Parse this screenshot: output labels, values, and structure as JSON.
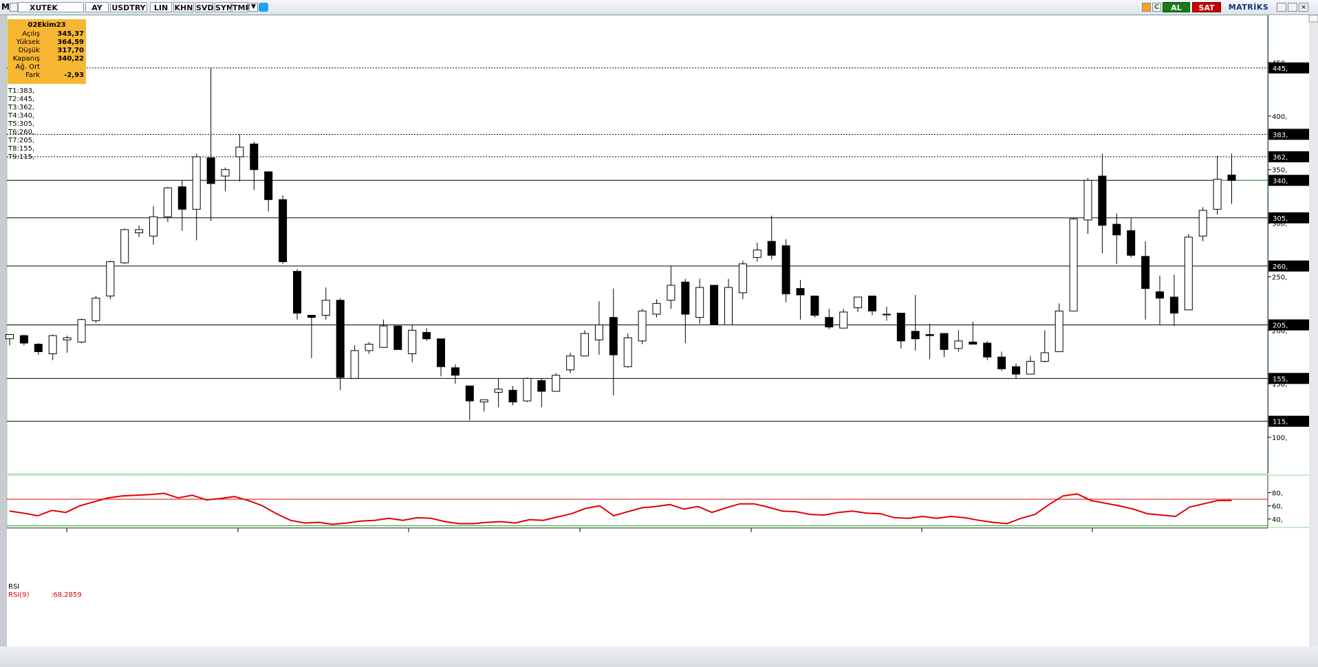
{
  "toolbar": {
    "logo": "M",
    "symbol": "XUTEK",
    "period": "AY",
    "currency": "USDTRY",
    "buttons": [
      "LIN",
      "KHN",
      "SVD",
      "SYM",
      "TMP"
    ],
    "buy_label": "AL",
    "sell_label": "SAT",
    "brand": "MATRİKS",
    "colors": {
      "buy": "#1a7a1a",
      "sell": "#c40000"
    }
  },
  "info_box": {
    "date": "02Ekim23",
    "rows": [
      {
        "label": "Açılış",
        "value": "345,37"
      },
      {
        "label": "Yüksek",
        "value": "364,59"
      },
      {
        "label": "Düşük",
        "value": "317,70"
      },
      {
        "label": "Kapanış",
        "value": "340,22"
      },
      {
        "label": "Ağ. Ort",
        "value": ""
      },
      {
        "label": "Fark",
        "value": "-2,93"
      }
    ],
    "background": "#f7b733"
  },
  "trendline_labels": [
    "T1:383,",
    "T2:445,",
    "T3:362,",
    "T4:340,",
    "T5:305,",
    "T6:260,",
    "T7:205,",
    "T8:155,",
    "T9:115,"
  ],
  "chart_data": [
    {
      "type": "candlestick",
      "title": "",
      "y_axis": {
        "side": "right",
        "min": 70,
        "max": 500,
        "ticks": [
          100,
          150,
          200,
          250,
          300,
          350,
          400,
          450
        ],
        "tick_labels": [
          "100,",
          "150,",
          "200,",
          "250,",
          "300,",
          "350,",
          "400,",
          "450,"
        ]
      },
      "horizontal_lines": [
        {
          "value": 445,
          "label": "445,",
          "style": "dotted"
        },
        {
          "value": 383,
          "label": "383,",
          "style": "dotted"
        },
        {
          "value": 362,
          "label": "362,",
          "style": "dotted"
        },
        {
          "value": 340,
          "label": "340,",
          "style": "solid"
        },
        {
          "value": 305,
          "label": "305,",
          "style": "solid"
        },
        {
          "value": 260,
          "label": "260,",
          "style": "solid"
        },
        {
          "value": 205,
          "label": "205,",
          "style": "solid"
        },
        {
          "value": 155,
          "label": "155,",
          "style": "solid"
        },
        {
          "value": 115,
          "label": "115,",
          "style": "solid"
        }
      ],
      "candles": [
        {
          "o": 192,
          "h": 196,
          "l": 186,
          "c": 196
        },
        {
          "o": 195,
          "h": 196,
          "l": 186,
          "c": 188
        },
        {
          "o": 187,
          "h": 188,
          "l": 177,
          "c": 180
        },
        {
          "o": 178,
          "h": 196,
          "l": 172,
          "c": 195
        },
        {
          "o": 191,
          "h": 195,
          "l": 179,
          "c": 193
        },
        {
          "o": 189,
          "h": 211,
          "l": 188,
          "c": 210
        },
        {
          "o": 209,
          "h": 232,
          "l": 207,
          "c": 230
        },
        {
          "o": 232,
          "h": 265,
          "l": 229,
          "c": 264
        },
        {
          "o": 263,
          "h": 295,
          "l": 262,
          "c": 294
        },
        {
          "o": 291,
          "h": 298,
          "l": 287,
          "c": 294
        },
        {
          "o": 288,
          "h": 316,
          "l": 280,
          "c": 306
        },
        {
          "o": 306,
          "h": 334,
          "l": 301,
          "c": 333
        },
        {
          "o": 334,
          "h": 340,
          "l": 293,
          "c": 313
        },
        {
          "o": 313,
          "h": 365,
          "l": 284,
          "c": 362
        },
        {
          "o": 361,
          "h": 445,
          "l": 302,
          "c": 337
        },
        {
          "o": 344,
          "h": 352,
          "l": 330,
          "c": 350
        },
        {
          "o": 362,
          "h": 383,
          "l": 339,
          "c": 371
        },
        {
          "o": 374,
          "h": 376,
          "l": 331,
          "c": 350
        },
        {
          "o": 348,
          "h": 348,
          "l": 311,
          "c": 322
        },
        {
          "o": 322,
          "h": 326,
          "l": 262,
          "c": 264
        },
        {
          "o": 255,
          "h": 257,
          "l": 210,
          "c": 216
        },
        {
          "o": 214,
          "h": 214,
          "l": 174,
          "c": 212
        },
        {
          "o": 214,
          "h": 240,
          "l": 210,
          "c": 228
        },
        {
          "o": 228,
          "h": 230,
          "l": 144,
          "c": 156
        },
        {
          "o": 155,
          "h": 186,
          "l": 155,
          "c": 181
        },
        {
          "o": 181,
          "h": 189,
          "l": 178,
          "c": 187
        },
        {
          "o": 184,
          "h": 210,
          "l": 184,
          "c": 204
        },
        {
          "o": 204,
          "h": 204,
          "l": 183,
          "c": 182
        },
        {
          "o": 178,
          "h": 205,
          "l": 170,
          "c": 200
        },
        {
          "o": 198,
          "h": 202,
          "l": 190,
          "c": 192
        },
        {
          "o": 192,
          "h": 192,
          "l": 157,
          "c": 166
        },
        {
          "o": 165,
          "h": 168,
          "l": 150,
          "c": 158
        },
        {
          "o": 148,
          "h": 148,
          "l": 116,
          "c": 134
        },
        {
          "o": 133,
          "h": 135,
          "l": 124,
          "c": 135
        },
        {
          "o": 142,
          "h": 155,
          "l": 128,
          "c": 145
        },
        {
          "o": 144,
          "h": 148,
          "l": 130,
          "c": 133
        },
        {
          "o": 134,
          "h": 156,
          "l": 133,
          "c": 155
        },
        {
          "o": 153,
          "h": 155,
          "l": 128,
          "c": 143
        },
        {
          "o": 143,
          "h": 160,
          "l": 143,
          "c": 158
        },
        {
          "o": 163,
          "h": 179,
          "l": 160,
          "c": 176
        },
        {
          "o": 176,
          "h": 200,
          "l": 176,
          "c": 197
        },
        {
          "o": 191,
          "h": 227,
          "l": 177,
          "c": 205
        },
        {
          "o": 212,
          "h": 239,
          "l": 139,
          "c": 177
        },
        {
          "o": 166,
          "h": 197,
          "l": 165,
          "c": 193
        },
        {
          "o": 190,
          "h": 220,
          "l": 187,
          "c": 218
        },
        {
          "o": 215,
          "h": 229,
          "l": 212,
          "c": 225
        },
        {
          "o": 228,
          "h": 260,
          "l": 220,
          "c": 242
        },
        {
          "o": 245,
          "h": 248,
          "l": 188,
          "c": 215
        },
        {
          "o": 212,
          "h": 248,
          "l": 206,
          "c": 240
        },
        {
          "o": 242,
          "h": 242,
          "l": 206,
          "c": 205
        },
        {
          "o": 205,
          "h": 248,
          "l": 205,
          "c": 240
        },
        {
          "o": 235,
          "h": 265,
          "l": 229,
          "c": 262
        },
        {
          "o": 268,
          "h": 282,
          "l": 264,
          "c": 275
        },
        {
          "o": 283,
          "h": 307,
          "l": 266,
          "c": 270
        },
        {
          "o": 279,
          "h": 285,
          "l": 226,
          "c": 234
        },
        {
          "o": 239,
          "h": 247,
          "l": 210,
          "c": 233
        },
        {
          "o": 232,
          "h": 232,
          "l": 212,
          "c": 214
        },
        {
          "o": 212,
          "h": 220,
          "l": 201,
          "c": 203
        },
        {
          "o": 202,
          "h": 220,
          "l": 202,
          "c": 217
        },
        {
          "o": 221,
          "h": 231,
          "l": 217,
          "c": 231
        },
        {
          "o": 232,
          "h": 232,
          "l": 214,
          "c": 218
        },
        {
          "o": 215,
          "h": 222,
          "l": 209,
          "c": 215
        },
        {
          "o": 216,
          "h": 216,
          "l": 183,
          "c": 190
        },
        {
          "o": 199,
          "h": 233,
          "l": 181,
          "c": 192
        },
        {
          "o": 196,
          "h": 206,
          "l": 173,
          "c": 195
        },
        {
          "o": 197,
          "h": 197,
          "l": 175,
          "c": 182
        },
        {
          "o": 183,
          "h": 200,
          "l": 180,
          "c": 190
        },
        {
          "o": 189,
          "h": 208,
          "l": 189,
          "c": 187
        },
        {
          "o": 188,
          "h": 190,
          "l": 172,
          "c": 175
        },
        {
          "o": 175,
          "h": 180,
          "l": 162,
          "c": 164
        },
        {
          "o": 166,
          "h": 169,
          "l": 155,
          "c": 159
        },
        {
          "o": 159,
          "h": 176,
          "l": 159,
          "c": 171
        },
        {
          "o": 171,
          "h": 200,
          "l": 170,
          "c": 179
        },
        {
          "o": 180,
          "h": 225,
          "l": 180,
          "c": 218
        },
        {
          "o": 218,
          "h": 305,
          "l": 218,
          "c": 304
        },
        {
          "o": 303,
          "h": 342,
          "l": 290,
          "c": 340
        },
        {
          "o": 344,
          "h": 365,
          "l": 272,
          "c": 298
        },
        {
          "o": 299,
          "h": 309,
          "l": 262,
          "c": 289
        },
        {
          "o": 293,
          "h": 305,
          "l": 268,
          "c": 270
        },
        {
          "o": 269,
          "h": 283,
          "l": 210,
          "c": 239
        },
        {
          "o": 236,
          "h": 251,
          "l": 205,
          "c": 230
        },
        {
          "o": 231,
          "h": 252,
          "l": 204,
          "c": 216
        },
        {
          "o": 219,
          "h": 290,
          "l": 219,
          "c": 287
        },
        {
          "o": 288,
          "h": 315,
          "l": 283,
          "c": 312
        },
        {
          "o": 313,
          "h": 363,
          "l": 308,
          "c": 341
        },
        {
          "o": 345,
          "h": 365,
          "l": 318,
          "c": 340
        }
      ]
    },
    {
      "type": "line",
      "title": "RSI",
      "series": [
        {
          "name": "RSI(9)",
          "last_value": ":68.2859",
          "values": [
            52,
            49,
            45,
            53,
            50,
            60,
            66,
            72,
            75,
            76,
            77,
            79,
            72,
            76,
            69,
            71,
            74,
            68,
            60,
            48,
            38,
            34,
            35,
            32,
            34,
            37,
            38,
            41,
            38,
            42,
            41,
            36,
            33,
            33,
            35,
            36,
            34,
            39,
            38,
            43,
            48,
            56,
            60,
            45,
            51,
            57,
            59,
            62,
            55,
            59,
            50,
            57,
            63,
            63,
            58,
            52,
            51,
            47,
            46,
            50,
            52,
            49,
            48,
            42,
            41,
            44,
            41,
            44,
            42,
            38,
            35,
            33,
            41,
            47,
            62,
            75,
            78,
            68,
            64,
            60,
            55,
            48,
            46,
            44,
            58,
            63,
            68,
            68
          ]
        }
      ],
      "y_axis": {
        "min": 20,
        "max": 95,
        "ticks": [
          40,
          60,
          80
        ],
        "tick_labels": [
          "40,",
          "60,",
          "80,"
        ]
      },
      "horizontal_lines": [
        {
          "value": 70
        },
        {
          "value": 30
        }
      ]
    }
  ]
}
